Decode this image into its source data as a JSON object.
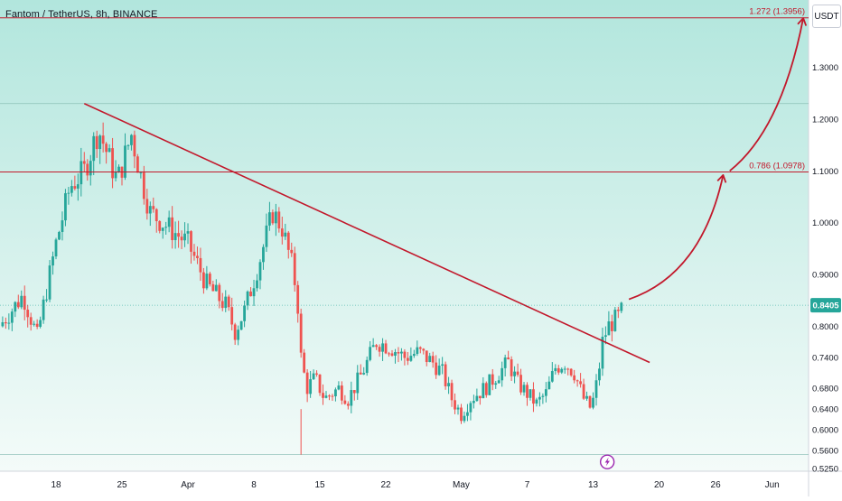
{
  "header": {
    "symbol": "Fantom / TetherUS, 8h, BINANCE",
    "currency": "USDT"
  },
  "colors": {
    "bull": "#26a69a",
    "bear": "#ef5350",
    "trend_line": "#c2182b",
    "background_top": "#b2e6dd",
    "background_bottom": "#f4fbf9",
    "price_label_bg": "#26a69a",
    "flash_icon": "#9c27b0"
  },
  "chart_data": {
    "type": "candlestick",
    "ylim": [
      0.52,
      1.43
    ],
    "y_ticks": [
      {
        "value": 1.3,
        "label": "1.3000"
      },
      {
        "value": 1.2,
        "label": "1.2000"
      },
      {
        "value": 1.1,
        "label": "1.1000"
      },
      {
        "value": 1.0,
        "label": "1.0000"
      },
      {
        "value": 0.9,
        "label": "0.9000"
      },
      {
        "value": 0.8,
        "label": "0.8000"
      },
      {
        "value": 0.74,
        "label": "0.7400"
      },
      {
        "value": 0.68,
        "label": "0.6800"
      },
      {
        "value": 0.64,
        "label": "0.6400"
      },
      {
        "value": 0.6,
        "label": "0.6000"
      },
      {
        "value": 0.56,
        "label": "0.5600"
      },
      {
        "value": 0.525,
        "label": "0.5250"
      }
    ],
    "x_ticks": [
      {
        "day": 18,
        "label": "18"
      },
      {
        "day": 25,
        "label": "25"
      },
      {
        "day": 32,
        "label": "Apr"
      },
      {
        "day": 39,
        "label": "8"
      },
      {
        "day": 46,
        "label": "15"
      },
      {
        "day": 53,
        "label": "22"
      },
      {
        "day": 61,
        "label": "May"
      },
      {
        "day": 68,
        "label": "7"
      },
      {
        "day": 75,
        "label": "13"
      },
      {
        "day": 82,
        "label": "20"
      },
      {
        "day": 88,
        "label": "26"
      },
      {
        "day": 94,
        "label": "Jun"
      }
    ],
    "price_path": [
      {
        "day": 12.0,
        "close": 0.8
      },
      {
        "day": 14.5,
        "close": 0.86
      },
      {
        "day": 16.0,
        "close": 0.78
      },
      {
        "day": 18.0,
        "close": 0.96
      },
      {
        "day": 19.5,
        "close": 1.07
      },
      {
        "day": 21.0,
        "close": 1.1
      },
      {
        "day": 22.5,
        "close": 1.18
      },
      {
        "day": 23.5,
        "close": 1.13
      },
      {
        "day": 24.5,
        "close": 1.08
      },
      {
        "day": 26.0,
        "close": 1.17
      },
      {
        "day": 27.0,
        "close": 1.09
      },
      {
        "day": 28.0,
        "close": 1.02
      },
      {
        "day": 30.0,
        "close": 0.99
      },
      {
        "day": 32.0,
        "close": 0.96
      },
      {
        "day": 34.0,
        "close": 0.88
      },
      {
        "day": 36.0,
        "close": 0.84
      },
      {
        "day": 37.0,
        "close": 0.79
      },
      {
        "day": 38.0,
        "close": 0.83
      },
      {
        "day": 39.5,
        "close": 0.92
      },
      {
        "day": 41.0,
        "close": 1.02
      },
      {
        "day": 42.0,
        "close": 0.99
      },
      {
        "day": 43.0,
        "close": 0.92
      },
      {
        "day": 43.6,
        "close": 0.86
      },
      {
        "day": 44.0,
        "close": 0.74
      },
      {
        "day": 44.6,
        "close": 0.68
      },
      {
        "day": 45.5,
        "close": 0.7
      },
      {
        "day": 46.5,
        "close": 0.66
      },
      {
        "day": 48.0,
        "close": 0.68
      },
      {
        "day": 49.0,
        "close": 0.66
      },
      {
        "day": 50.5,
        "close": 0.71
      },
      {
        "day": 52.0,
        "close": 0.77
      },
      {
        "day": 53.5,
        "close": 0.76
      },
      {
        "day": 55.0,
        "close": 0.74
      },
      {
        "day": 56.5,
        "close": 0.75
      },
      {
        "day": 58.0,
        "close": 0.73
      },
      {
        "day": 59.0,
        "close": 0.71
      },
      {
        "day": 60.0,
        "close": 0.66
      },
      {
        "day": 61.0,
        "close": 0.63
      },
      {
        "day": 62.0,
        "close": 0.66
      },
      {
        "day": 63.5,
        "close": 0.68
      },
      {
        "day": 65.0,
        "close": 0.71
      },
      {
        "day": 66.0,
        "close": 0.73
      },
      {
        "day": 67.0,
        "close": 0.69
      },
      {
        "day": 68.0,
        "close": 0.67
      },
      {
        "day": 69.0,
        "close": 0.65
      },
      {
        "day": 70.0,
        "close": 0.67
      },
      {
        "day": 71.0,
        "close": 0.72
      },
      {
        "day": 72.0,
        "close": 0.73
      },
      {
        "day": 73.0,
        "close": 0.71
      },
      {
        "day": 74.0,
        "close": 0.66
      },
      {
        "day": 74.8,
        "close": 0.64
      },
      {
        "day": 75.5,
        "close": 0.7
      },
      {
        "day": 76.0,
        "close": 0.77
      },
      {
        "day": 76.6,
        "close": 0.8
      },
      {
        "day": 77.2,
        "close": 0.81
      },
      {
        "day": 77.8,
        "close": 0.82
      },
      {
        "day": 78.3,
        "close": 0.84
      }
    ],
    "volatility_seed": 7,
    "last_price": {
      "value": 0.8405,
      "label": "0.8405"
    },
    "fib_levels": [
      {
        "value": 1.3956,
        "label": "1.272 (1.3956)"
      },
      {
        "value": 1.0978,
        "label": "0.786 (1.0978)"
      }
    ],
    "trend_line": {
      "start": {
        "day": 21.0,
        "value": 1.23
      },
      "end": {
        "day": 81.0,
        "value": 0.73
      }
    },
    "horizontal_levels": [
      1.23,
      0.552
    ],
    "projection_arrows": [
      {
        "from": {
          "day": 78.8,
          "value": 0.852
        },
        "ctrl": {
          "day": 86.5,
          "value": 0.9
        },
        "to": {
          "day": 88.8,
          "value": 1.092
        }
      },
      {
        "from": {
          "day": 89.5,
          "value": 1.1
        },
        "ctrl": {
          "day": 95.0,
          "value": 1.18
        },
        "to": {
          "day": 97.3,
          "value": 1.395
        }
      }
    ],
    "flash_marker": {
      "day": 76.5,
      "value": 0.538
    }
  }
}
